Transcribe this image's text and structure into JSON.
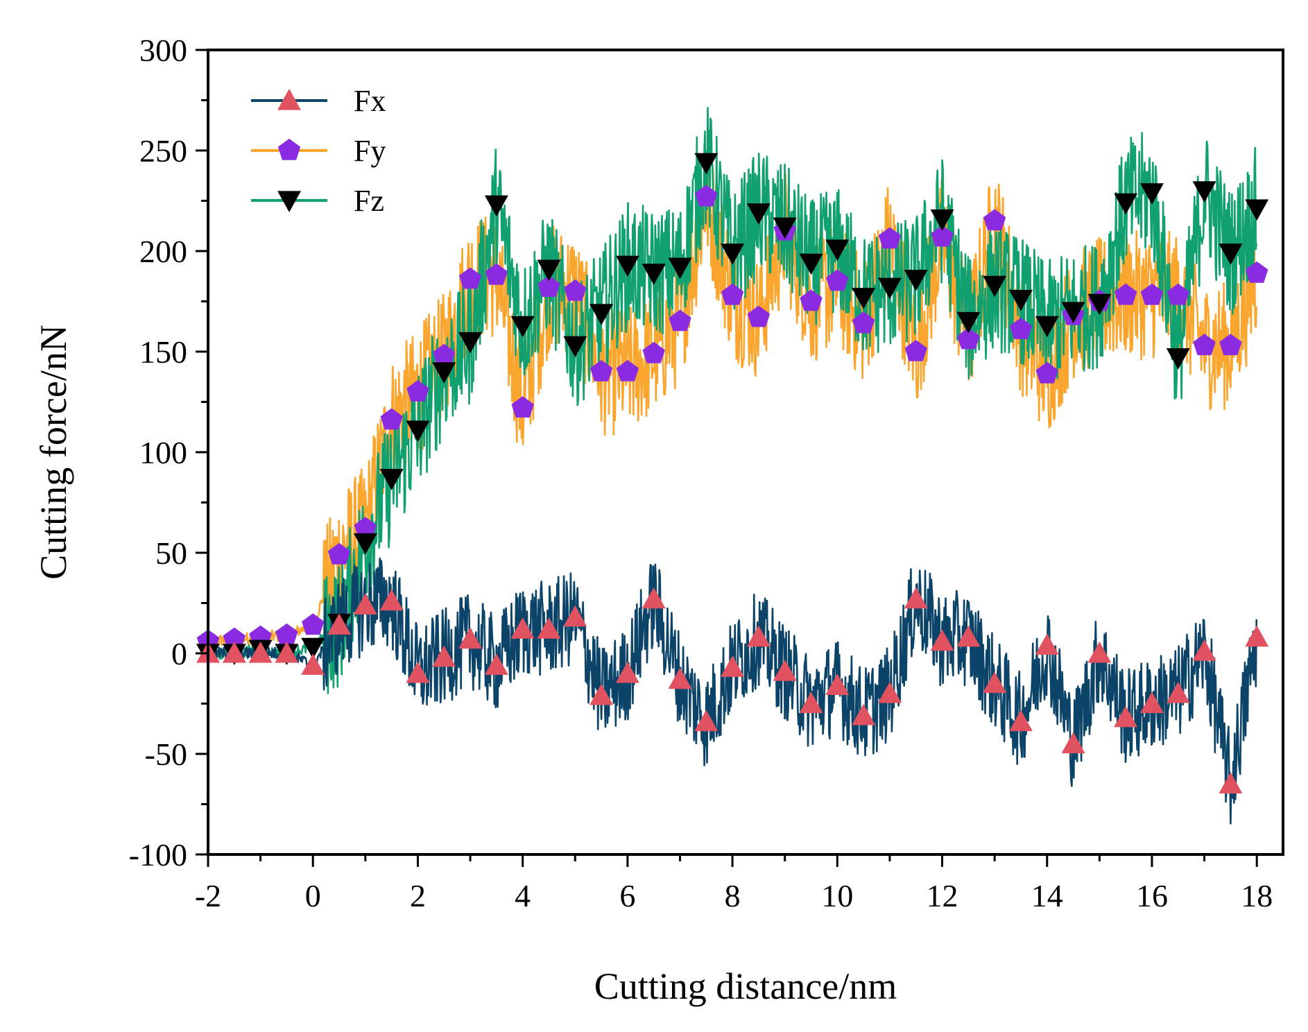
{
  "chart_data": {
    "type": "line",
    "title": "",
    "xlabel": "Cutting distance/nm",
    "ylabel": "Cutting force/nN",
    "xlim": [
      -2,
      18.5
    ],
    "ylim": [
      -100,
      300
    ],
    "xticks": [
      -2,
      0,
      2,
      4,
      6,
      8,
      10,
      12,
      14,
      16,
      18
    ],
    "yticks": [
      -100,
      -50,
      0,
      50,
      100,
      150,
      200,
      250,
      300
    ],
    "xtick_labels": [
      "-2",
      "0",
      "2",
      "4",
      "6",
      "8",
      "10",
      "12",
      "14",
      "16",
      "18"
    ],
    "ytick_labels": [
      "-100",
      "-50",
      "0",
      "50",
      "100",
      "150",
      "200",
      "250",
      "300"
    ],
    "legend_position": "top-left",
    "series": [
      {
        "name": "Fx",
        "line_color": "#0b4468",
        "marker_color": "#e0525f",
        "marker": "triangle-up",
        "noise_amplitude": 24,
        "marker_x": [
          -2,
          -1.5,
          -1,
          -0.5,
          0,
          0.5,
          1,
          1.5,
          2,
          2.5,
          3,
          3.5,
          4,
          4.5,
          5,
          5.5,
          6,
          6.5,
          7,
          7.5,
          8,
          8.5,
          9,
          9.5,
          10,
          10.5,
          11,
          11.5,
          12,
          12.5,
          13,
          13.5,
          14,
          14.5,
          15,
          15.5,
          16,
          16.5,
          17,
          17.5,
          18
        ],
        "marker_y": [
          0,
          0,
          0,
          0,
          -6,
          14,
          24,
          26,
          -10,
          -2,
          7,
          -6,
          12,
          12,
          18,
          -21,
          -10,
          27,
          -13,
          -34,
          -7,
          8,
          -9,
          -25,
          -16,
          -31,
          -20,
          27,
          6,
          8,
          -15,
          -34,
          4,
          -45,
          0,
          -32,
          -25,
          -20,
          1,
          -65,
          8
        ]
      },
      {
        "name": "Fy",
        "line_color": "#f9a52e",
        "marker_color": "#8a2be2",
        "marker": "pentagon",
        "noise_amplitude": 32,
        "marker_x": [
          -2,
          -1.5,
          -1,
          -0.5,
          0,
          0.5,
          1,
          1.5,
          2,
          2.5,
          3,
          3.5,
          4,
          4.5,
          5,
          5.5,
          6,
          6.5,
          7,
          7.5,
          8,
          8.5,
          9,
          9.5,
          10,
          10.5,
          11,
          11.5,
          12,
          12.5,
          13,
          13.5,
          14,
          14.5,
          15,
          15.5,
          16,
          16.5,
          17,
          17.5,
          18
        ],
        "marker_y": [
          6,
          7,
          8,
          9,
          14,
          49,
          62,
          116,
          130,
          148,
          186,
          188,
          122,
          182,
          180,
          140,
          140,
          149,
          165,
          227,
          178,
          167,
          210,
          175,
          185,
          164,
          206,
          150,
          207,
          156,
          215,
          161,
          139,
          168,
          175,
          178,
          178,
          178,
          153,
          153,
          189
        ]
      },
      {
        "name": "Fz",
        "line_color": "#11a070",
        "marker_color": "#000000",
        "marker": "triangle-down",
        "noise_amplitude": 32,
        "marker_x": [
          -2,
          -1.5,
          -1,
          -0.5,
          0,
          0.5,
          1,
          1.5,
          2,
          2.5,
          3,
          3.5,
          4,
          4.5,
          5,
          5.5,
          6,
          6.5,
          7,
          7.5,
          8,
          8.5,
          9,
          9.5,
          10,
          10.5,
          11,
          11.5,
          12,
          12.5,
          13,
          13.5,
          14,
          14.5,
          15,
          15.5,
          16,
          16.5,
          17,
          17.5,
          18
        ],
        "marker_y": [
          0,
          0,
          2,
          0,
          3,
          15,
          55,
          87,
          111,
          140,
          155,
          223,
          163,
          191,
          153,
          169,
          193,
          189,
          192,
          244,
          199,
          219,
          212,
          194,
          201,
          177,
          182,
          186,
          216,
          165,
          183,
          176,
          163,
          170,
          174,
          224,
          229,
          147,
          230,
          199,
          221
        ]
      }
    ]
  }
}
